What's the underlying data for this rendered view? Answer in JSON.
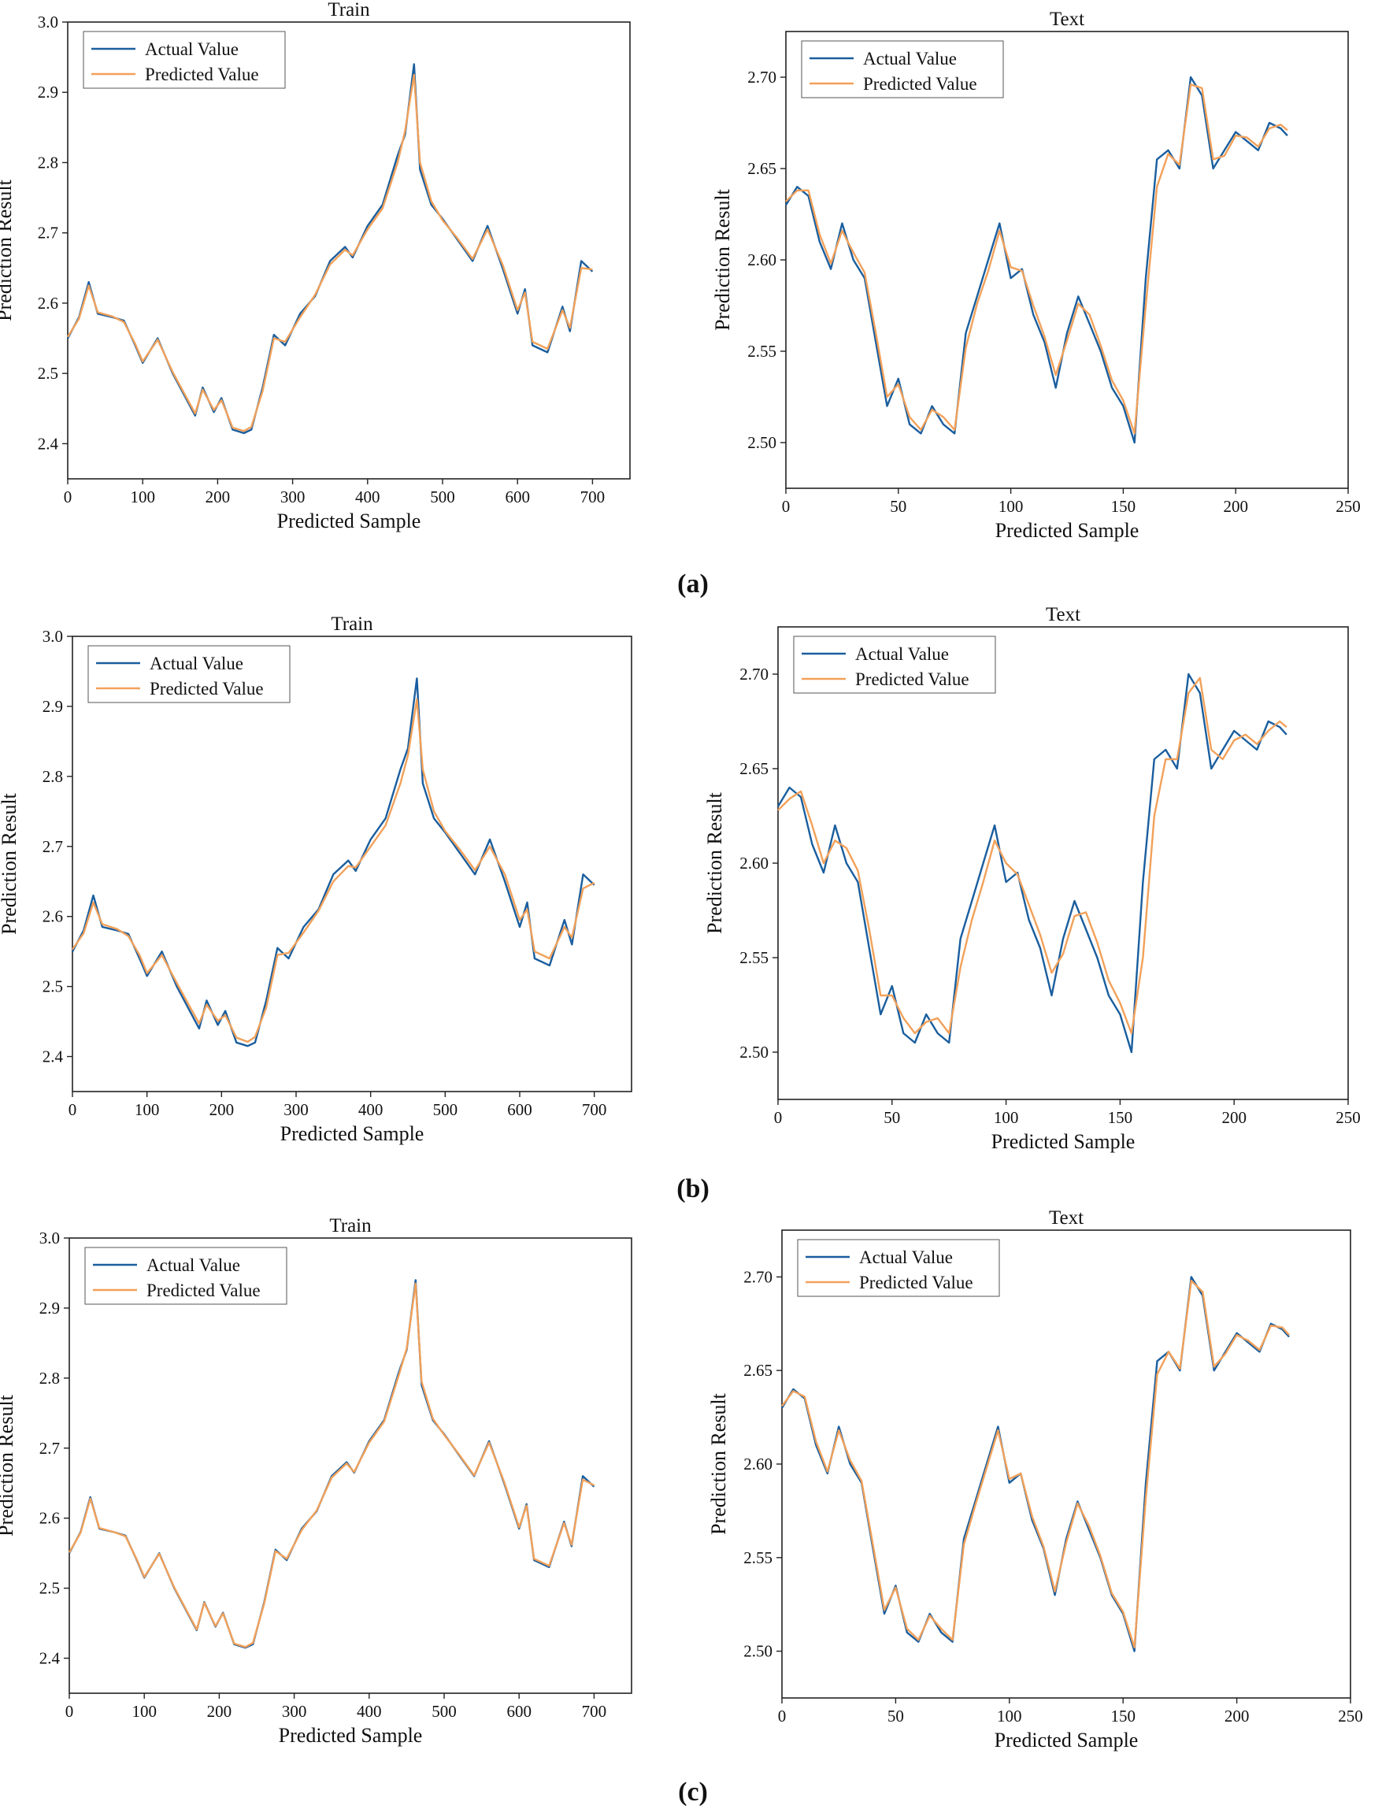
{
  "colors": {
    "actual": "#1a5e9e",
    "predicted": "#f2a15a"
  },
  "panels": [
    {
      "label": "(a)"
    },
    {
      "label": "(b)"
    },
    {
      "label": "(c)"
    }
  ],
  "chart_data": [
    {
      "type": "line",
      "panel": "(a)",
      "title": "Train",
      "xlabel": "Predicted Sample",
      "ylabel": "Prediction Result",
      "xlim": [
        0,
        750
      ],
      "ylim": [
        2.35,
        3.0
      ],
      "xticks": [
        "0",
        "100",
        "200",
        "300",
        "400",
        "500",
        "600",
        "700"
      ],
      "yticks": [
        "2.4",
        "2.5",
        "2.6",
        "2.7",
        "2.8",
        "2.9",
        "3.0"
      ],
      "legend": [
        "Actual Value",
        "Predicted Value"
      ],
      "legend_position": "top-left",
      "x": [
        0,
        15,
        28,
        40,
        60,
        75,
        90,
        100,
        120,
        140,
        170,
        180,
        195,
        205,
        220,
        235,
        245,
        260,
        275,
        290,
        310,
        330,
        350,
        370,
        380,
        400,
        420,
        440,
        450,
        462,
        470,
        485,
        500,
        520,
        540,
        560,
        580,
        600,
        610,
        620,
        640,
        660,
        670,
        685,
        700
      ],
      "series": [
        {
          "name": "Actual Value",
          "values": [
            2.55,
            2.58,
            2.63,
            2.585,
            2.58,
            2.575,
            2.54,
            2.515,
            2.55,
            2.5,
            2.44,
            2.48,
            2.445,
            2.465,
            2.42,
            2.415,
            2.42,
            2.48,
            2.555,
            2.54,
            2.585,
            2.61,
            2.66,
            2.68,
            2.665,
            2.71,
            2.74,
            2.81,
            2.84,
            2.94,
            2.79,
            2.74,
            2.72,
            2.69,
            2.66,
            2.71,
            2.65,
            2.585,
            2.62,
            2.54,
            2.53,
            2.595,
            2.56,
            2.66,
            2.645
          ]
        },
        {
          "name": "Predicted Value",
          "values": [
            2.552,
            2.578,
            2.625,
            2.587,
            2.581,
            2.573,
            2.542,
            2.517,
            2.548,
            2.502,
            2.443,
            2.477,
            2.448,
            2.462,
            2.423,
            2.418,
            2.424,
            2.475,
            2.55,
            2.545,
            2.58,
            2.612,
            2.655,
            2.676,
            2.668,
            2.705,
            2.735,
            2.8,
            2.845,
            2.925,
            2.8,
            2.745,
            2.718,
            2.692,
            2.663,
            2.705,
            2.655,
            2.59,
            2.615,
            2.545,
            2.535,
            2.59,
            2.565,
            2.65,
            2.648
          ]
        }
      ]
    },
    {
      "type": "line",
      "panel": "(a)",
      "title": "Text",
      "xlabel": "Predicted Sample",
      "ylabel": "Prediction Result",
      "xlim": [
        0,
        250
      ],
      "ylim": [
        2.475,
        2.725
      ],
      "xticks": [
        "0",
        "50",
        "100",
        "150",
        "200",
        "250"
      ],
      "yticks": [
        "2.50",
        "2.55",
        "2.60",
        "2.65",
        "2.70"
      ],
      "legend": [
        "Actual Value",
        "Predicted Value"
      ],
      "legend_position": "top-left",
      "x": [
        0,
        5,
        10,
        15,
        20,
        25,
        30,
        35,
        40,
        45,
        50,
        55,
        60,
        65,
        70,
        75,
        80,
        85,
        90,
        95,
        100,
        105,
        110,
        115,
        120,
        125,
        130,
        135,
        140,
        145,
        150,
        155,
        160,
        165,
        170,
        175,
        180,
        185,
        190,
        195,
        200,
        205,
        210,
        215,
        220,
        223
      ],
      "series": [
        {
          "name": "Actual Value",
          "values": [
            2.63,
            2.64,
            2.635,
            2.61,
            2.595,
            2.62,
            2.6,
            2.59,
            2.555,
            2.52,
            2.535,
            2.51,
            2.505,
            2.52,
            2.51,
            2.505,
            2.56,
            2.58,
            2.6,
            2.62,
            2.59,
            2.595,
            2.57,
            2.555,
            2.53,
            2.56,
            2.58,
            2.565,
            2.55,
            2.53,
            2.52,
            2.5,
            2.59,
            2.655,
            2.66,
            2.65,
            2.7,
            2.69,
            2.65,
            2.66,
            2.67,
            2.665,
            2.66,
            2.675,
            2.672,
            2.668
          ]
        },
        {
          "name": "Predicted Value",
          "values": [
            2.632,
            2.638,
            2.638,
            2.614,
            2.598,
            2.616,
            2.604,
            2.593,
            2.56,
            2.525,
            2.532,
            2.514,
            2.507,
            2.518,
            2.514,
            2.507,
            2.552,
            2.576,
            2.594,
            2.616,
            2.596,
            2.594,
            2.575,
            2.558,
            2.537,
            2.556,
            2.576,
            2.57,
            2.553,
            2.534,
            2.523,
            2.505,
            2.575,
            2.64,
            2.658,
            2.652,
            2.696,
            2.694,
            2.655,
            2.657,
            2.668,
            2.667,
            2.662,
            2.672,
            2.674,
            2.671
          ]
        }
      ]
    },
    {
      "type": "line",
      "panel": "(b)",
      "title": "Train",
      "xlabel": "Predicted Sample",
      "ylabel": "Prediction Result",
      "xlim": [
        0,
        750
      ],
      "ylim": [
        2.35,
        3.0
      ],
      "xticks": [
        "0",
        "100",
        "200",
        "300",
        "400",
        "500",
        "600",
        "700"
      ],
      "yticks": [
        "2.4",
        "2.5",
        "2.6",
        "2.7",
        "2.8",
        "2.9",
        "3.0"
      ],
      "legend": [
        "Actual Value",
        "Predicted Value"
      ],
      "legend_position": "top-left",
      "x": [
        0,
        15,
        28,
        40,
        60,
        75,
        90,
        100,
        120,
        140,
        170,
        180,
        195,
        205,
        220,
        235,
        245,
        260,
        275,
        290,
        310,
        330,
        350,
        370,
        380,
        400,
        420,
        440,
        450,
        462,
        470,
        485,
        500,
        520,
        540,
        560,
        580,
        600,
        610,
        620,
        640,
        660,
        670,
        685,
        700
      ],
      "series": [
        {
          "name": "Actual Value",
          "values": [
            2.55,
            2.58,
            2.63,
            2.585,
            2.58,
            2.575,
            2.54,
            2.515,
            2.55,
            2.5,
            2.44,
            2.48,
            2.445,
            2.465,
            2.42,
            2.415,
            2.42,
            2.48,
            2.555,
            2.54,
            2.585,
            2.61,
            2.66,
            2.68,
            2.665,
            2.71,
            2.74,
            2.81,
            2.84,
            2.94,
            2.79,
            2.74,
            2.72,
            2.69,
            2.66,
            2.71,
            2.65,
            2.585,
            2.62,
            2.54,
            2.53,
            2.595,
            2.56,
            2.66,
            2.645
          ]
        },
        {
          "name": "Predicted Value",
          "values": [
            2.553,
            2.576,
            2.62,
            2.589,
            2.582,
            2.572,
            2.545,
            2.519,
            2.545,
            2.505,
            2.447,
            2.474,
            2.451,
            2.459,
            2.427,
            2.421,
            2.428,
            2.47,
            2.545,
            2.548,
            2.577,
            2.608,
            2.65,
            2.672,
            2.67,
            2.7,
            2.73,
            2.79,
            2.83,
            2.91,
            2.81,
            2.75,
            2.722,
            2.695,
            2.666,
            2.7,
            2.66,
            2.595,
            2.61,
            2.55,
            2.54,
            2.585,
            2.57,
            2.64,
            2.648
          ]
        }
      ]
    },
    {
      "type": "line",
      "panel": "(b)",
      "title": "Text",
      "xlabel": "Predicted Sample",
      "ylabel": "Prediction Result",
      "xlim": [
        0,
        250
      ],
      "ylim": [
        2.475,
        2.725
      ],
      "xticks": [
        "0",
        "50",
        "100",
        "150",
        "200",
        "250"
      ],
      "yticks": [
        "2.50",
        "2.55",
        "2.60",
        "2.65",
        "2.70"
      ],
      "legend": [
        "Actual Value",
        "Predicted Value"
      ],
      "legend_position": "top-left",
      "x": [
        0,
        5,
        10,
        15,
        20,
        25,
        30,
        35,
        40,
        45,
        50,
        55,
        60,
        65,
        70,
        75,
        80,
        85,
        90,
        95,
        100,
        105,
        110,
        115,
        120,
        125,
        130,
        135,
        140,
        145,
        150,
        155,
        160,
        165,
        170,
        175,
        180,
        185,
        190,
        195,
        200,
        205,
        210,
        215,
        220,
        223
      ],
      "series": [
        {
          "name": "Actual Value",
          "values": [
            2.63,
            2.64,
            2.635,
            2.61,
            2.595,
            2.62,
            2.6,
            2.59,
            2.555,
            2.52,
            2.535,
            2.51,
            2.505,
            2.52,
            2.51,
            2.505,
            2.56,
            2.58,
            2.6,
            2.62,
            2.59,
            2.595,
            2.57,
            2.555,
            2.53,
            2.56,
            2.58,
            2.565,
            2.55,
            2.53,
            2.52,
            2.5,
            2.59,
            2.655,
            2.66,
            2.65,
            2.7,
            2.69,
            2.65,
            2.66,
            2.67,
            2.665,
            2.66,
            2.675,
            2.672,
            2.668
          ]
        },
        {
          "name": "Predicted Value",
          "values": [
            2.628,
            2.634,
            2.638,
            2.62,
            2.6,
            2.612,
            2.608,
            2.596,
            2.565,
            2.53,
            2.53,
            2.518,
            2.51,
            2.516,
            2.518,
            2.51,
            2.545,
            2.57,
            2.59,
            2.612,
            2.6,
            2.594,
            2.578,
            2.562,
            2.542,
            2.552,
            2.572,
            2.574,
            2.558,
            2.538,
            2.526,
            2.51,
            2.55,
            2.625,
            2.655,
            2.655,
            2.69,
            2.698,
            2.66,
            2.655,
            2.665,
            2.668,
            2.663,
            2.67,
            2.675,
            2.672
          ]
        }
      ]
    },
    {
      "type": "line",
      "panel": "(c)",
      "title": "Train",
      "xlabel": "Predicted Sample",
      "ylabel": "Prediction Result",
      "xlim": [
        0,
        750
      ],
      "ylim": [
        2.35,
        3.0
      ],
      "xticks": [
        "0",
        "100",
        "200",
        "300",
        "400",
        "500",
        "600",
        "700"
      ],
      "yticks": [
        "2.4",
        "2.5",
        "2.6",
        "2.7",
        "2.8",
        "2.9",
        "3.0"
      ],
      "legend": [
        "Actual Value",
        "Predicted Value"
      ],
      "legend_position": "top-left",
      "x": [
        0,
        15,
        28,
        40,
        60,
        75,
        90,
        100,
        120,
        140,
        170,
        180,
        195,
        205,
        220,
        235,
        245,
        260,
        275,
        290,
        310,
        330,
        350,
        370,
        380,
        400,
        420,
        440,
        450,
        462,
        470,
        485,
        500,
        520,
        540,
        560,
        580,
        600,
        610,
        620,
        640,
        660,
        670,
        685,
        700
      ],
      "series": [
        {
          "name": "Actual Value",
          "values": [
            2.55,
            2.58,
            2.63,
            2.585,
            2.58,
            2.575,
            2.54,
            2.515,
            2.55,
            2.5,
            2.44,
            2.48,
            2.445,
            2.465,
            2.42,
            2.415,
            2.42,
            2.48,
            2.555,
            2.54,
            2.585,
            2.61,
            2.66,
            2.68,
            2.665,
            2.71,
            2.74,
            2.81,
            2.84,
            2.94,
            2.79,
            2.74,
            2.72,
            2.69,
            2.66,
            2.71,
            2.65,
            2.585,
            2.62,
            2.54,
            2.53,
            2.595,
            2.56,
            2.66,
            2.645
          ]
        },
        {
          "name": "Predicted Value",
          "values": [
            2.551,
            2.579,
            2.628,
            2.586,
            2.58,
            2.574,
            2.541,
            2.516,
            2.549,
            2.501,
            2.441,
            2.479,
            2.446,
            2.464,
            2.421,
            2.416,
            2.422,
            2.478,
            2.553,
            2.542,
            2.583,
            2.611,
            2.658,
            2.678,
            2.666,
            2.708,
            2.738,
            2.806,
            2.842,
            2.935,
            2.795,
            2.742,
            2.719,
            2.691,
            2.661,
            2.708,
            2.652,
            2.587,
            2.618,
            2.542,
            2.532,
            2.593,
            2.562,
            2.655,
            2.647
          ]
        }
      ]
    },
    {
      "type": "line",
      "panel": "(c)",
      "title": "Text",
      "xlabel": "Predicted Sample",
      "ylabel": "Prediction Result",
      "xlim": [
        0,
        250
      ],
      "ylim": [
        2.475,
        2.725
      ],
      "xticks": [
        "0",
        "50",
        "100",
        "150",
        "200",
        "250"
      ],
      "yticks": [
        "2.50",
        "2.55",
        "2.60",
        "2.65",
        "2.70"
      ],
      "legend": [
        "Actual Value",
        "Predicted Value"
      ],
      "legend_position": "top-left",
      "x": [
        0,
        5,
        10,
        15,
        20,
        25,
        30,
        35,
        40,
        45,
        50,
        55,
        60,
        65,
        70,
        75,
        80,
        85,
        90,
        95,
        100,
        105,
        110,
        115,
        120,
        125,
        130,
        135,
        140,
        145,
        150,
        155,
        160,
        165,
        170,
        175,
        180,
        185,
        190,
        195,
        200,
        205,
        210,
        215,
        220,
        223
      ],
      "series": [
        {
          "name": "Actual Value",
          "values": [
            2.63,
            2.64,
            2.635,
            2.61,
            2.595,
            2.62,
            2.6,
            2.59,
            2.555,
            2.52,
            2.535,
            2.51,
            2.505,
            2.52,
            2.51,
            2.505,
            2.56,
            2.58,
            2.6,
            2.62,
            2.59,
            2.595,
            2.57,
            2.555,
            2.53,
            2.56,
            2.58,
            2.565,
            2.55,
            2.53,
            2.52,
            2.5,
            2.59,
            2.655,
            2.66,
            2.65,
            2.7,
            2.69,
            2.65,
            2.66,
            2.67,
            2.665,
            2.66,
            2.675,
            2.672,
            2.668
          ]
        },
        {
          "name": "Predicted Value",
          "values": [
            2.631,
            2.639,
            2.636,
            2.612,
            2.596,
            2.618,
            2.602,
            2.591,
            2.557,
            2.522,
            2.534,
            2.512,
            2.506,
            2.519,
            2.512,
            2.506,
            2.557,
            2.578,
            2.598,
            2.618,
            2.592,
            2.595,
            2.572,
            2.556,
            2.532,
            2.558,
            2.579,
            2.567,
            2.551,
            2.531,
            2.521,
            2.502,
            2.582,
            2.648,
            2.66,
            2.651,
            2.698,
            2.692,
            2.652,
            2.659,
            2.669,
            2.666,
            2.661,
            2.674,
            2.673,
            2.669
          ]
        }
      ]
    }
  ]
}
